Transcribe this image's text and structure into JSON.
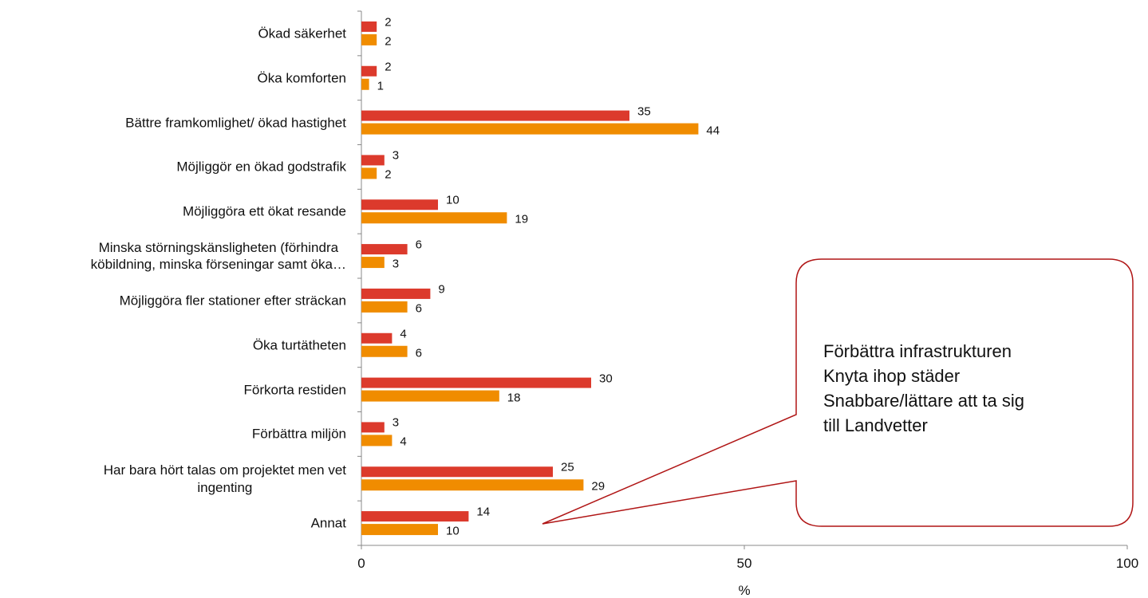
{
  "chart_data": {
    "type": "bar",
    "orientation": "horizontal",
    "categories": [
      "Ökad säkerhet",
      "Öka komforten",
      "Bättre framkomlighet/ ökad hastighet",
      "Möjliggör en ökad godstrafik",
      "Möjliggöra ett ökat resande",
      "Minska störningskänsligheten  (förhindra\nköbildning, minska förseningar samt öka…",
      "Möjliggöra fler stationer efter sträckan",
      "Öka turtätheten",
      "Förkorta restiden",
      "Förbättra miljön",
      "Har bara hört talas om projektet men vet\ningenting",
      "Annat"
    ],
    "series": [
      {
        "color": "#dc3a2c",
        "values": [
          2,
          2,
          35,
          3,
          10,
          6,
          9,
          4,
          30,
          3,
          25,
          14
        ]
      },
      {
        "color": "#f08c00",
        "values": [
          2,
          1,
          44,
          2,
          19,
          3,
          6,
          6,
          18,
          4,
          29,
          10
        ]
      }
    ],
    "xlabel": "%",
    "xlim": [
      0,
      100
    ],
    "xticks": [
      0,
      50,
      100
    ],
    "annotation": "Förbättra infrastrukturen\nKnyta ihop städer\nSnabbare/lättare att ta sig\ntill Landvetter"
  }
}
